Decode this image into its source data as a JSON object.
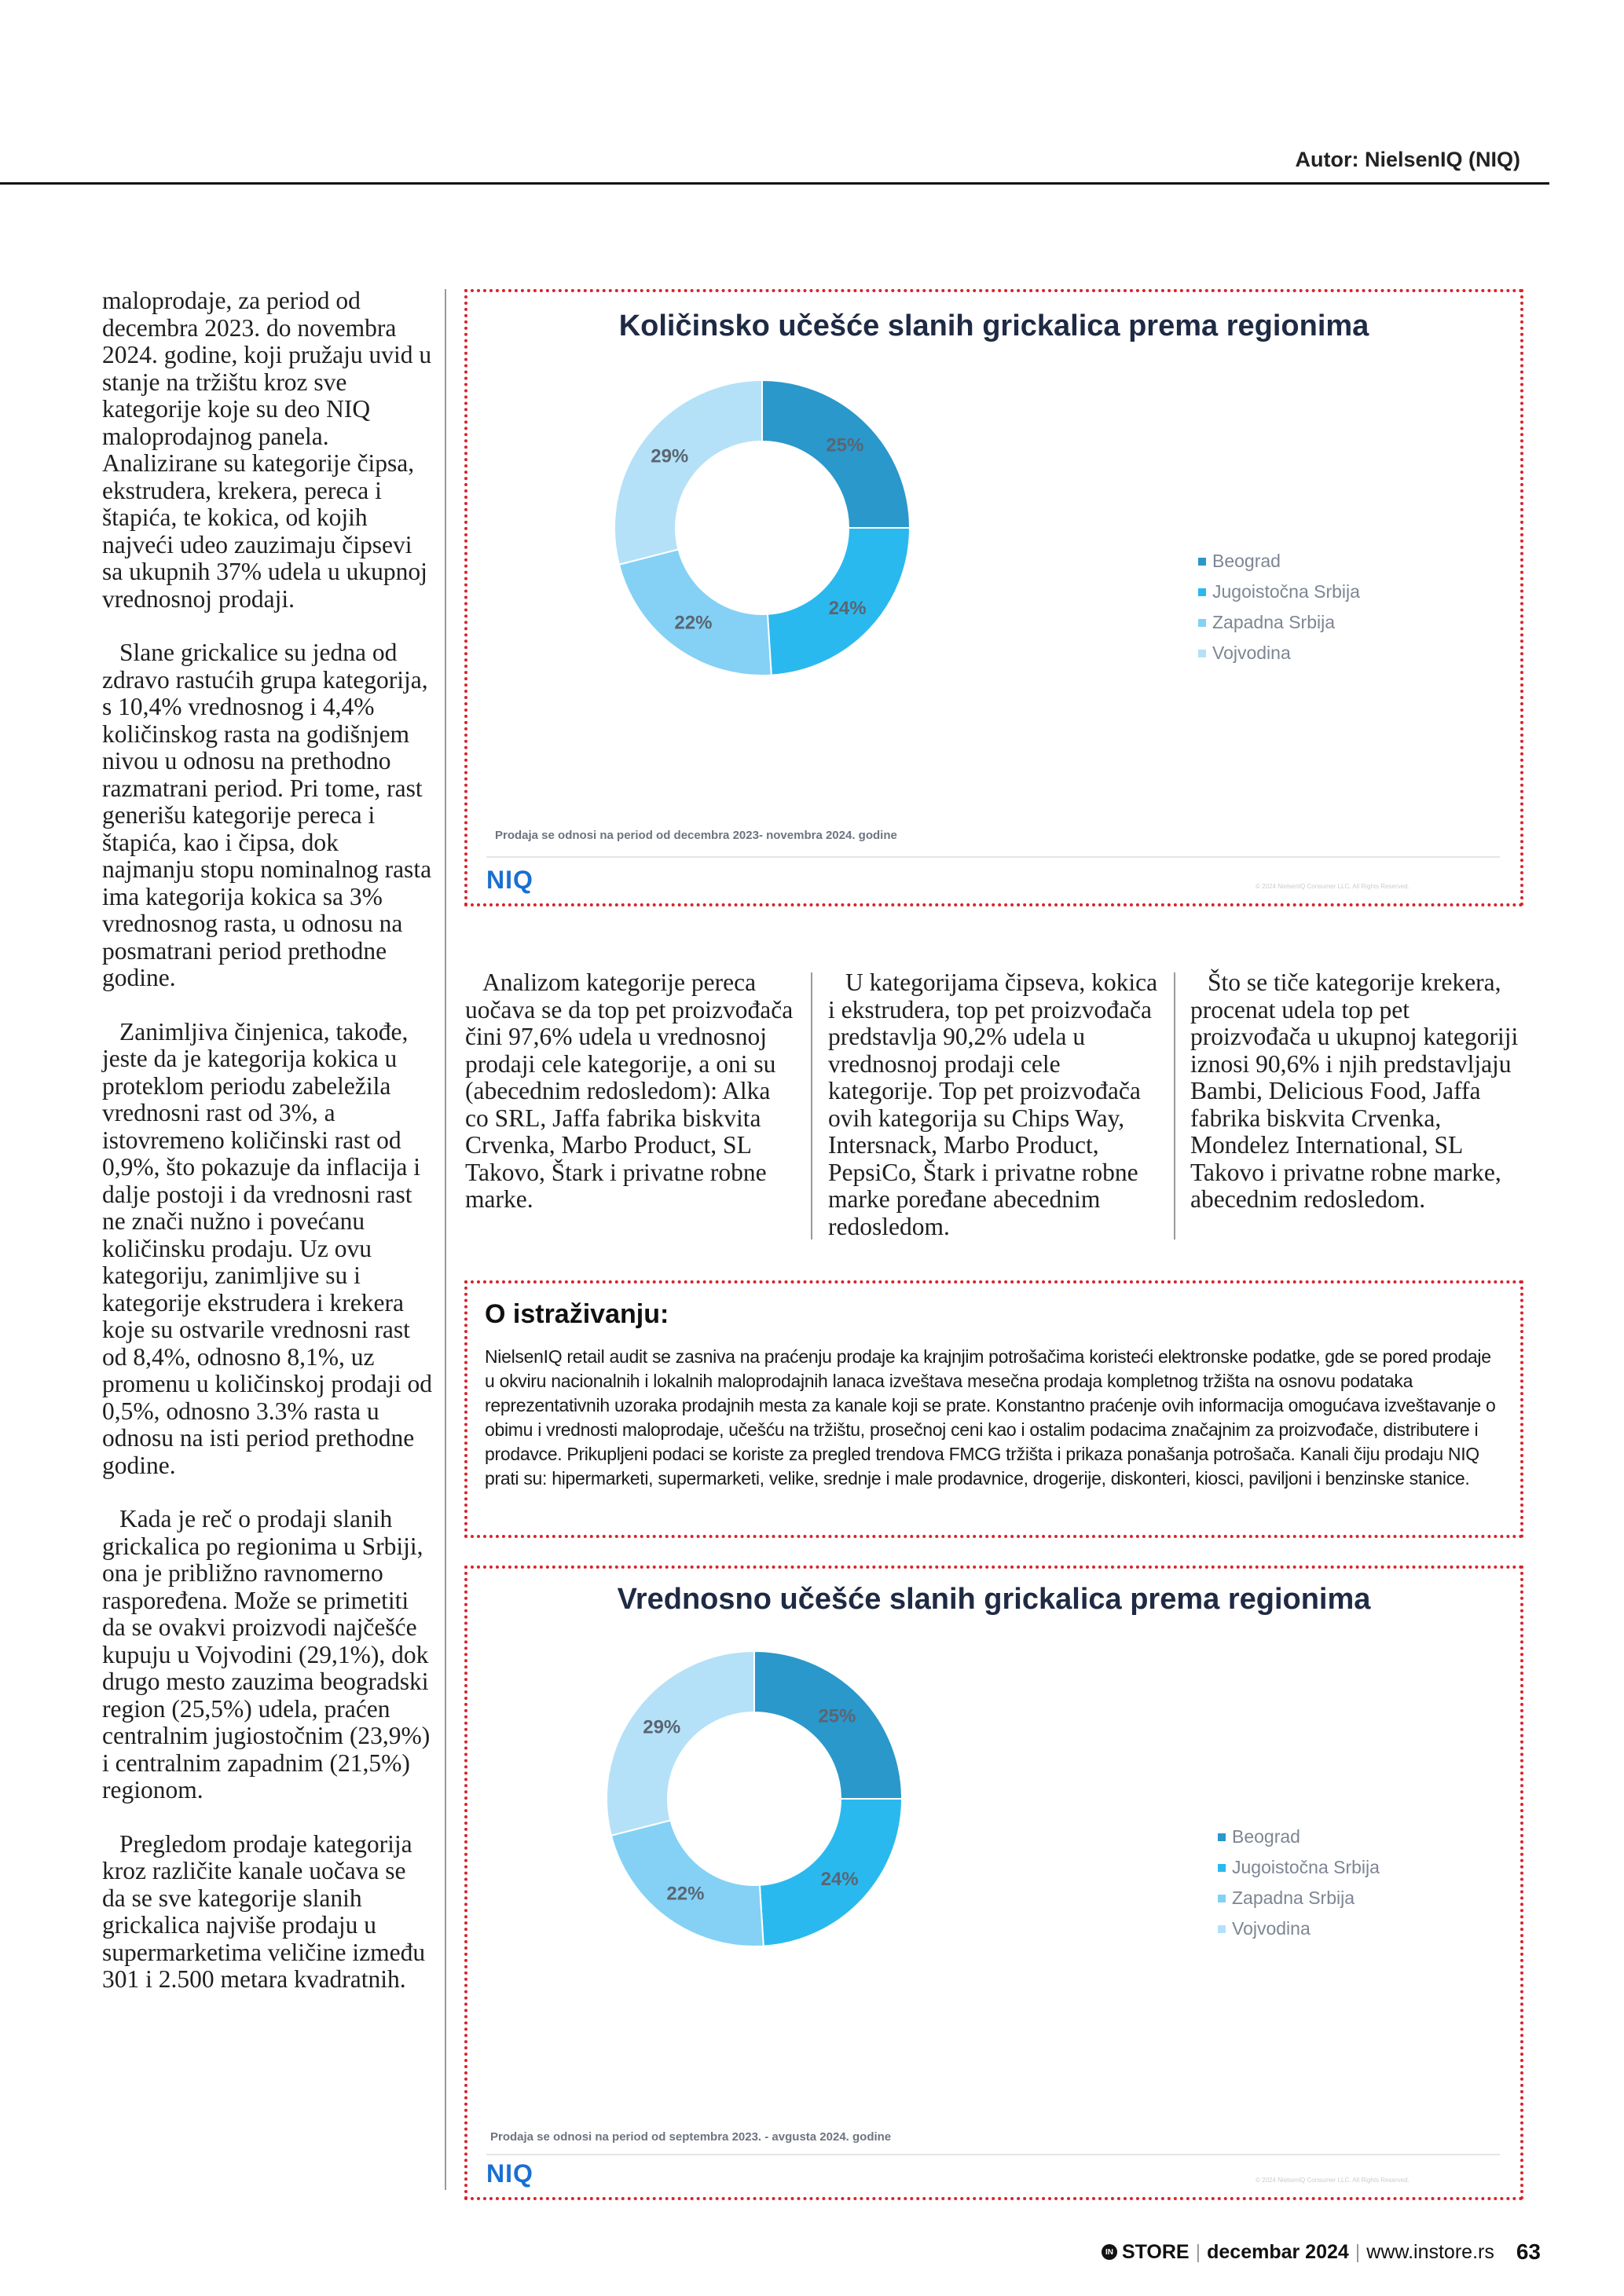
{
  "header": {
    "author": "Autor: NielsenIQ (NIQ)"
  },
  "left_column": [
    "maloprodaje, za period od decembra 2023. do novembra 2024. godine, koji pružaju uvid u stanje na tržištu kroz sve kategorije koje su deo NIQ maloprodajnog panela. Analizirane su kategorije čipsa, ekstrudera, krekera, pereca i štapića, te kokica, od kojih najveći udeo zauzimaju čipsevi sa ukupnih 37% udela u ukupnoj vrednosnoj prodaji.",
    "Slane grickalice su jedna od zdravo rastućih grupa kategorija, s 10,4% vrednosnog i 4,4% količinskog rasta na godišnjem nivou u odnosu na prethodno razmatrani period. Pri tome, rast generišu kategorije pereca i štapića, kao i čipsa, dok najmanju stopu nominalnog rasta ima kategorija kokica sa 3% vrednosnog rasta, u odnosu na posmatrani period prethodne godine.",
    "Zanimljiva činjenica, takođe, jeste da je kategorija kokica u proteklom periodu zabeležila vrednosni rast od 3%, a istovremeno količinski rast od 0,9%, što pokazuje da inflacija i dalje postoji i da vrednosni rast ne znači nužno i povećanu količinsku prodaju. Uz ovu kategoriju, zanimljive su i kategorije ekstrudera i krekera koje su ostvarile vrednosni rast od 8,4%, odnosno 8,1%, uz promenu u količinskoj prodaji od 0,5%, odnosno 3.3% rasta u odnosu na isti period prethodne godine.",
    "Kada je reč o prodaji slanih grickalica po regionima u Srbiji, ona je približno ravnomerno raspoređena. Može se primetiti da se ovakvi proizvodi najčešće kupuju u Vojvodini (29,1%), dok drugo mesto zauzima beogradski region (25,5%) udela, praćen centralnim jugiostočnim (23,9%) i centralnim zapadnim (21,5%) regionom.",
    "Pregledom prodaje kategorija kroz različite kanale uočava se da se sve kategorije slanih grickalica najviše prodaju u supermarketima veličine između 301 i 2.500 metara kvadratnih."
  ],
  "chart1": {
    "title": "Količinsko učešće slanih grickalica prema regionima",
    "note": "Prodaja se odnosi na period od decembra 2023- novembra 2024. godine",
    "logo": "NIQ"
  },
  "chart2": {
    "title": "Vrednosno učešće slanih grickalica prema regionima",
    "note": "Prodaja se odnosi na period od septembra 2023. - avgusta 2024. godine",
    "logo": "NIQ"
  },
  "chart_data": [
    {
      "type": "pie",
      "variant": "donut",
      "title": "Količinsko učešće slanih grickalica prema regionima",
      "categories": [
        "Beograd",
        "Jugoistočna Srbija",
        "Zapadna Srbija",
        "Vojvodina"
      ],
      "values": [
        25,
        24,
        22,
        29
      ],
      "labels": [
        "25%",
        "24%",
        "22%",
        "29%"
      ],
      "colors": [
        "#2a98cb",
        "#2ab9ee",
        "#84d1f5",
        "#b4e1f7"
      ],
      "legend": "right"
    },
    {
      "type": "pie",
      "variant": "donut",
      "title": "Vrednosno učešće slanih grickalica prema regionima",
      "categories": [
        "Beograd",
        "Jugoistočna Srbija",
        "Zapadna Srbija",
        "Vojvodina"
      ],
      "values": [
        25,
        24,
        22,
        29
      ],
      "labels": [
        "25%",
        "24%",
        "22%",
        "29%"
      ],
      "colors": [
        "#2a98cb",
        "#2ab9ee",
        "#84d1f5",
        "#b4e1f7"
      ],
      "legend": "right"
    }
  ],
  "mid_columns": [
    "Analizom kategorije pereca uočava se da top pet proizvođača čini 97,6% udela u vrednosnoj prodaji cele kategorije, a oni su (abecednim redosledom): Alka co SRL, Jaffa fabrika biskvita Crvenka, Marbo Product, SL Takovo, Štark i privatne robne marke.",
    "U kategorijama čipseva, kokica i ekstrudera, top pet proizvođača predstavlja 90,2% udela u vrednosnoj prodaji cele kategorije. Top pet proizvođača ovih kategorija su Chips Way, Intersnack, Marbo Product, PepsiCo, Štark i privatne robne marke poređane abecednim redosledom.",
    "Što se tiče kategorije krekera, procenat udela top pet proizvođača u ukupnoj kategoriji iznosi 90,6% i njih predstavljaju Bambi, Delicious Food, Jaffa fabrika biskvita Crvenka, Mondelez International, SL Takovo i privatne robne marke, abecednim redosledom."
  ],
  "about": {
    "title": "O istraživanju:",
    "text": "NielsenIQ retail audit se zasniva na praćenju prodaje ka krajnjim potrošačima koristeći elektronske podatke, gde se pored prodaje u okviru nacionalnih i lokalnih maloprodajnih lanaca izveštava mesečna prodaja kompletnog tržišta na osnovu podataka reprezentativnih uzoraka prodajnih mesta za kanale koji se prate. Konstantno praćenje ovih informacija omogućava izveštavanje o obimu i vrednosti maloprodaje, učešću na tržištu, prosečnoj ceni kao i ostalim podacima značajnim za proizvođače, distributere i prodavce. Prikupljeni podaci se koriste za pregled trendova FMCG tržišta i prikaza ponašanja potrošača. Kanali čiju prodaju NIQ prati su: hipermarketi, supermarketi, velike, srednje i male prodavnice, drogerije, diskonteri, kiosci, paviljoni i benzinske stanice."
  },
  "footer": {
    "brand": "STORE",
    "month": "decembar 2024",
    "url": "www.instore.rs",
    "page": "63"
  }
}
